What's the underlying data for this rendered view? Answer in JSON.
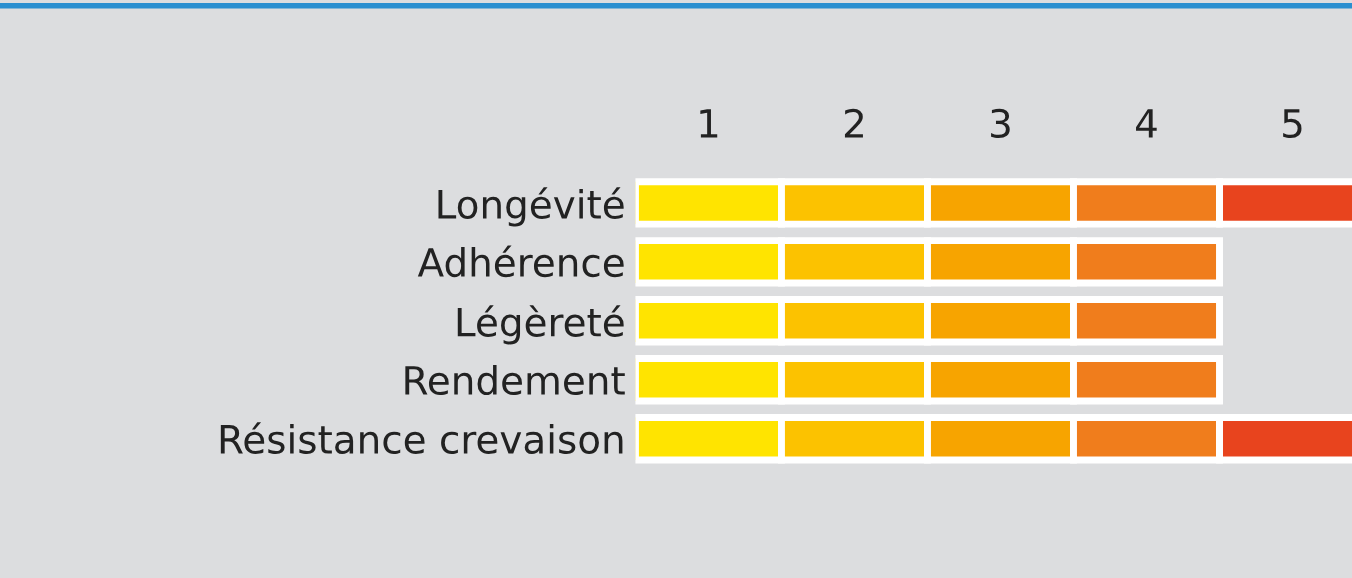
{
  "chart_data": {
    "type": "bar",
    "orientation": "horizontal",
    "stacked": true,
    "categories": [
      "Longévité",
      "Adhérence",
      "Légèreté",
      "Rendement",
      "Résistance crevaison"
    ],
    "series": [
      {
        "color": "#ffe400",
        "values": [
          1,
          1,
          1,
          1,
          1
        ]
      },
      {
        "color": "#fcc200",
        "values": [
          1,
          1,
          1,
          1,
          1
        ]
      },
      {
        "color": "#f7a400",
        "values": [
          1,
          1,
          1,
          1,
          1
        ]
      },
      {
        "color": "#f07d1c",
        "values": [
          1,
          1,
          1,
          1,
          1
        ]
      },
      {
        "color": "#e8441e",
        "values": [
          1,
          null,
          null,
          null,
          1
        ]
      }
    ],
    "xlim": [
      0,
      5
    ],
    "xticks": [
      {
        "value": 0.5,
        "label": "1"
      },
      {
        "value": 1.5,
        "label": "2"
      },
      {
        "value": 2.5,
        "label": "3"
      },
      {
        "value": 3.5,
        "label": "4"
      },
      {
        "value": 4.5,
        "label": "5"
      }
    ],
    "grid": false,
    "legend": false
  }
}
